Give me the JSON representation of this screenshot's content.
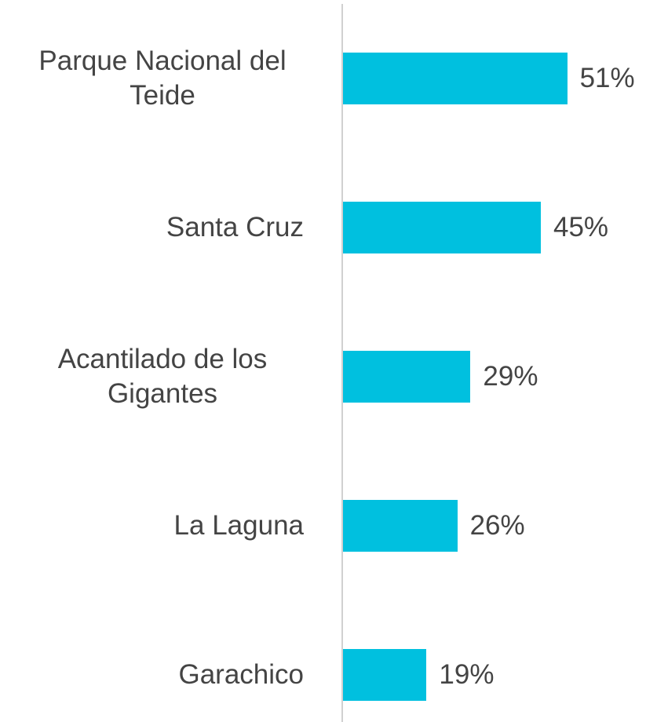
{
  "chart_data": {
    "type": "bar",
    "orientation": "horizontal",
    "categories": [
      "Parque Nacional del Teide",
      "Santa Cruz",
      "Acantilado de los Gigantes",
      "La Laguna",
      "Garachico"
    ],
    "values": [
      51,
      45,
      29,
      26,
      19
    ],
    "value_labels": [
      "51%",
      "45%",
      "29%",
      "26%",
      "19%"
    ],
    "color": "#00c0df"
  }
}
